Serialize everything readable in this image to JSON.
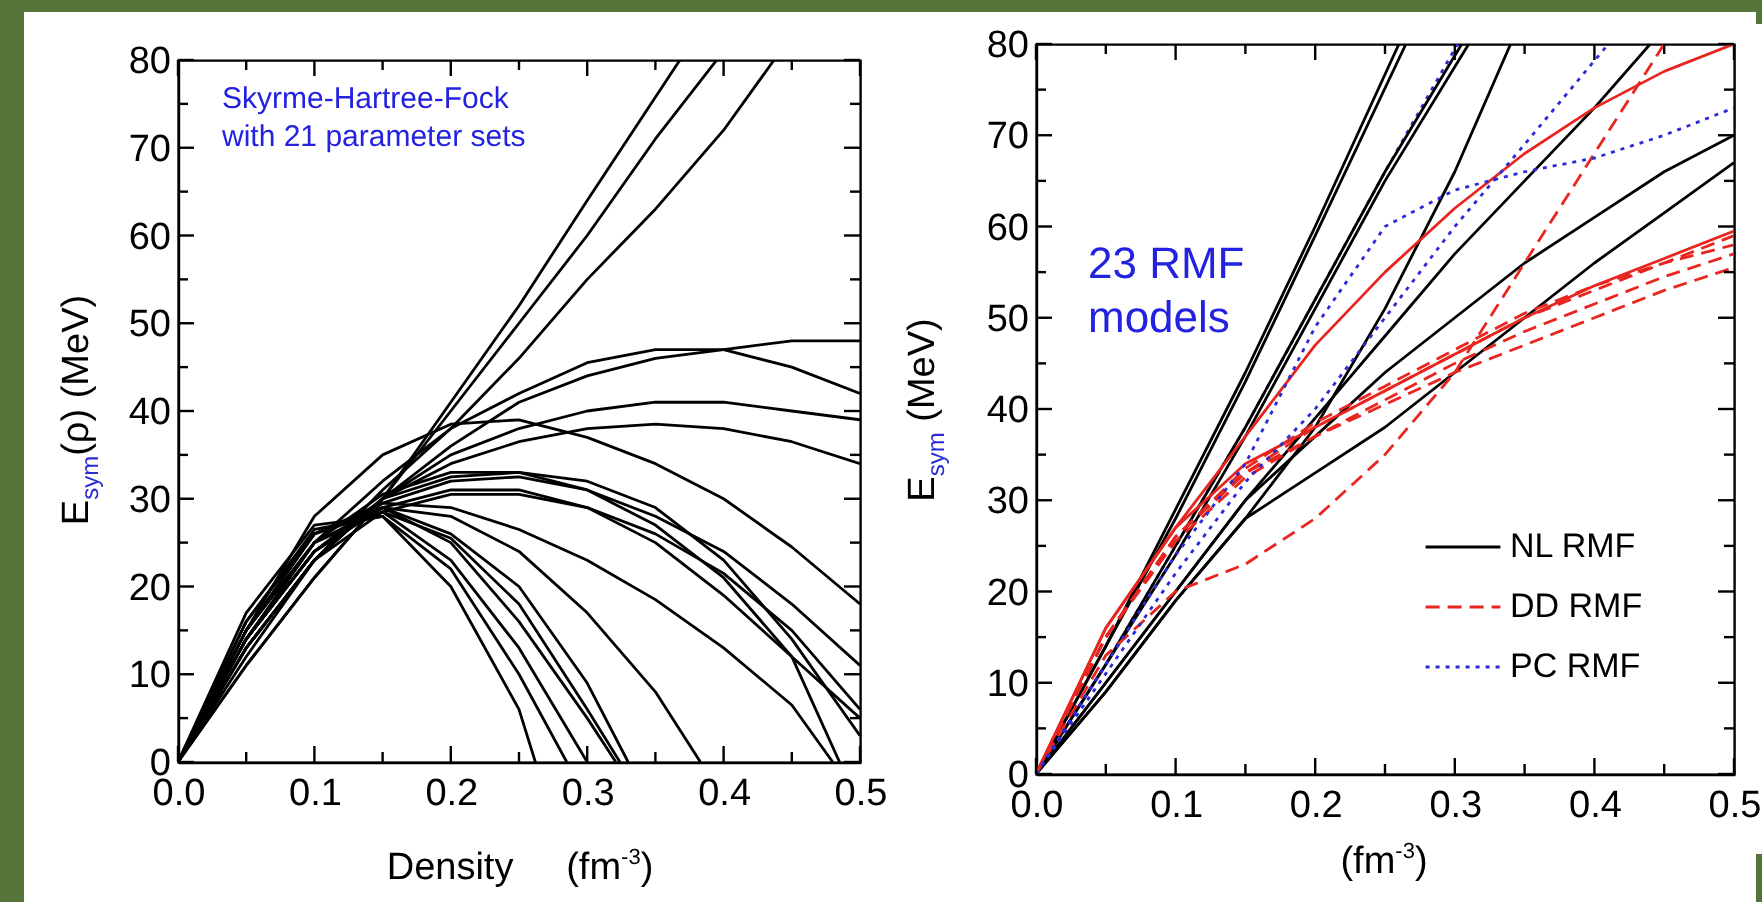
{
  "chart_data": [
    {
      "type": "line",
      "xlabel": "Density     (fm$^{-3}$)",
      "ylabel": "E$_{sym}$(ρ) (MeV)",
      "annotations": [
        "Skyrme-Hartree-Fock\nwith 21 parameter sets"
      ],
      "xlim": [
        0,
        0.5
      ],
      "ylim": [
        0,
        80
      ],
      "xticks": [
        {
          "value": 0,
          "label": "0.0"
        },
        {
          "value": 0.05,
          "label": null
        },
        {
          "value": 0.1,
          "label": "0.1"
        },
        {
          "value": 0.15,
          "label": null
        },
        {
          "value": 0.2,
          "label": "0.2"
        },
        {
          "value": 0.25,
          "label": null
        },
        {
          "value": 0.3,
          "label": "0.3"
        },
        {
          "value": 0.35,
          "label": null
        },
        {
          "value": 0.4,
          "label": "0.4"
        },
        {
          "value": 0.45,
          "label": null
        },
        {
          "value": 0.5,
          "label": "0.5"
        }
      ],
      "yticks": [
        0,
        {
          "value": 5,
          "label": null
        },
        10,
        {
          "value": 15,
          "label": null
        },
        20,
        {
          "value": 25,
          "label": null
        },
        30,
        {
          "value": 35,
          "label": null
        },
        40,
        {
          "value": 45,
          "label": null
        },
        50,
        {
          "value": 55,
          "label": null
        },
        60,
        {
          "value": 65,
          "label": null
        },
        70,
        {
          "value": 75,
          "label": null
        },
        80
      ],
      "series": [
        {
          "color": "#000000",
          "line_style": "solid",
          "x": [
            0,
            0.05,
            0.1,
            0.15,
            0.2,
            0.25,
            0.3,
            0.368
          ],
          "values": [
            0,
            11,
            21,
            30,
            41,
            52,
            64,
            80
          ]
        },
        {
          "color": "#000000",
          "line_style": "solid",
          "x": [
            0,
            0.05,
            0.1,
            0.15,
            0.2,
            0.25,
            0.3,
            0.35,
            0.395
          ],
          "values": [
            0,
            11,
            21,
            30,
            40,
            50,
            60,
            71,
            80
          ]
        },
        {
          "color": "#000000",
          "line_style": "solid",
          "x": [
            0,
            0.05,
            0.1,
            0.15,
            0.2,
            0.25,
            0.3,
            0.35,
            0.4,
            0.437
          ],
          "values": [
            0,
            12,
            23,
            31,
            38,
            46,
            55,
            63,
            72,
            80
          ]
        },
        {
          "color": "#000000",
          "line_style": "solid",
          "x": [
            0,
            0.05,
            0.1,
            0.15,
            0.2,
            0.25,
            0.3,
            0.35,
            0.4,
            0.45,
            0.5
          ],
          "values": [
            0,
            13,
            23,
            30,
            36,
            41,
            44,
            46,
            47,
            48,
            48
          ]
        },
        {
          "color": "#000000",
          "line_style": "solid",
          "x": [
            0,
            0.05,
            0.1,
            0.15,
            0.2,
            0.25,
            0.3,
            0.35,
            0.4,
            0.45,
            0.5
          ],
          "values": [
            0,
            14,
            25,
            32,
            38,
            42,
            45.5,
            47,
            47,
            45,
            42
          ]
        },
        {
          "color": "#000000",
          "line_style": "solid",
          "x": [
            0,
            0.05,
            0.1,
            0.15,
            0.2,
            0.25,
            0.3,
            0.35,
            0.4,
            0.45,
            0.5
          ],
          "values": [
            0,
            13,
            23,
            30,
            35,
            38,
            40,
            41,
            41,
            40,
            39
          ]
        },
        {
          "color": "#000000",
          "line_style": "solid",
          "x": [
            0,
            0.05,
            0.1,
            0.15,
            0.2,
            0.25,
            0.3,
            0.35,
            0.4,
            0.45,
            0.5
          ],
          "values": [
            0,
            13,
            23,
            30,
            34,
            36.5,
            38,
            38.5,
            38,
            36.5,
            34
          ]
        },
        {
          "color": "#000000",
          "line_style": "solid",
          "x": [
            0,
            0.05,
            0.1,
            0.15,
            0.2,
            0.25,
            0.3,
            0.35,
            0.4,
            0.45,
            0.5
          ],
          "values": [
            0,
            15,
            28,
            35,
            38.5,
            39,
            37,
            34,
            30,
            24.5,
            18
          ]
        },
        {
          "color": "#000000",
          "line_style": "solid",
          "x": [
            0,
            0.05,
            0.1,
            0.15,
            0.2,
            0.25,
            0.3,
            0.35,
            0.4,
            0.45,
            0.485
          ],
          "values": [
            0,
            15,
            25,
            30.5,
            33,
            33,
            31,
            27,
            21,
            12,
            0
          ]
        },
        {
          "color": "#000000",
          "line_style": "solid",
          "x": [
            0,
            0.05,
            0.1,
            0.15,
            0.2,
            0.25,
            0.3,
            0.35,
            0.4,
            0.45,
            0.5
          ],
          "values": [
            0,
            14,
            24,
            30,
            32.5,
            33,
            32,
            29,
            23,
            14,
            3
          ]
        },
        {
          "color": "#000000",
          "line_style": "solid",
          "x": [
            0,
            0.05,
            0.1,
            0.15,
            0.2,
            0.25,
            0.3,
            0.35,
            0.4,
            0.45,
            0.5
          ],
          "values": [
            0,
            14,
            24,
            29.5,
            32,
            32.5,
            31,
            28,
            24,
            18,
            11
          ]
        },
        {
          "color": "#000000",
          "line_style": "solid",
          "x": [
            0,
            0.05,
            0.1,
            0.15,
            0.2,
            0.25,
            0.3,
            0.35,
            0.4,
            0.45,
            0.5
          ],
          "values": [
            0,
            13,
            23,
            28.5,
            30.5,
            30.5,
            29,
            26,
            21.5,
            15,
            6
          ]
        },
        {
          "color": "#000000",
          "line_style": "solid",
          "x": [
            0,
            0.05,
            0.1,
            0.15,
            0.2,
            0.25,
            0.3,
            0.35,
            0.4,
            0.45,
            0.5
          ],
          "values": [
            0,
            14,
            24,
            29,
            31,
            31,
            29,
            25,
            19,
            12,
            5
          ]
        },
        {
          "color": "#000000",
          "line_style": "solid",
          "x": [
            0,
            0.05,
            0.1,
            0.15,
            0.2,
            0.25,
            0.3,
            0.35,
            0.383
          ],
          "values": [
            0,
            16,
            26,
            29,
            28,
            24,
            17,
            8,
            0
          ]
        },
        {
          "color": "#000000",
          "line_style": "solid",
          "x": [
            0,
            0.05,
            0.1,
            0.15,
            0.2,
            0.25,
            0.3,
            0.35,
            0.4,
            0.45,
            0.48
          ],
          "values": [
            0,
            15,
            26,
            29.5,
            29,
            26.5,
            23,
            18.5,
            13,
            6.5,
            0
          ]
        },
        {
          "color": "#000000",
          "line_style": "solid",
          "x": [
            0,
            0.05,
            0.1,
            0.15,
            0.2,
            0.25,
            0.262
          ],
          "values": [
            0,
            17,
            27,
            28,
            20,
            6,
            0
          ]
        },
        {
          "color": "#000000",
          "line_style": "solid",
          "x": [
            0,
            0.05,
            0.1,
            0.15,
            0.2,
            0.25,
            0.285
          ],
          "values": [
            0,
            16,
            26.5,
            28,
            22,
            10,
            0
          ]
        },
        {
          "color": "#000000",
          "line_style": "solid",
          "x": [
            0,
            0.05,
            0.1,
            0.15,
            0.2,
            0.25,
            0.3
          ],
          "values": [
            0,
            15,
            26,
            28.5,
            23,
            13,
            0
          ]
        },
        {
          "color": "#000000",
          "line_style": "solid",
          "x": [
            0,
            0.05,
            0.1,
            0.15,
            0.2,
            0.25,
            0.3,
            0.321
          ],
          "values": [
            0,
            15,
            25,
            29,
            25,
            16,
            5,
            0
          ]
        },
        {
          "color": "#000000",
          "line_style": "solid",
          "x": [
            0,
            0.05,
            0.1,
            0.15,
            0.2,
            0.25,
            0.3,
            0.324
          ],
          "values": [
            0,
            14,
            25,
            28.5,
            25.5,
            18,
            6,
            0
          ]
        },
        {
          "color": "#000000",
          "line_style": "solid",
          "x": [
            0,
            0.05,
            0.1,
            0.15,
            0.2,
            0.25,
            0.3,
            0.33
          ],
          "values": [
            0,
            14,
            24,
            29,
            26,
            20,
            9,
            0
          ]
        }
      ]
    },
    {
      "type": "line",
      "xlabel": "(fm$^{-3}$)",
      "ylabel": "E$_{sym}$ (MeV)",
      "annotations": [
        "23 RMF\nmodels"
      ],
      "legend": "bottom right",
      "xlim": [
        0,
        0.5
      ],
      "ylim": [
        0,
        80
      ],
      "xticks": [
        {
          "value": 0,
          "label": "0.0"
        },
        {
          "value": 0.05,
          "label": null
        },
        {
          "value": 0.1,
          "label": "0.1"
        },
        {
          "value": 0.15,
          "label": null
        },
        {
          "value": 0.2,
          "label": "0.2"
        },
        {
          "value": 0.25,
          "label": null
        },
        {
          "value": 0.3,
          "label": "0.3"
        },
        {
          "value": 0.35,
          "label": null
        },
        {
          "value": 0.4,
          "label": "0.4"
        },
        {
          "value": 0.45,
          "label": null
        },
        {
          "value": 0.5,
          "label": "0.5"
        }
      ],
      "yticks": [
        0,
        {
          "value": 5,
          "label": null
        },
        10,
        {
          "value": 15,
          "label": null
        },
        20,
        {
          "value": 25,
          "label": null
        },
        30,
        {
          "value": 35,
          "label": null
        },
        40,
        {
          "value": 45,
          "label": null
        },
        50,
        {
          "value": 55,
          "label": null
        },
        60,
        {
          "value": 65,
          "label": null
        },
        70,
        {
          "value": 75,
          "label": null
        },
        80
      ],
      "series": [
        {
          "name": "NL RMF",
          "color": "#000000",
          "line_style": "solid",
          "x": [
            0,
            0.05,
            0.1,
            0.15,
            0.2,
            0.26
          ],
          "values": [
            0,
            14,
            29,
            44,
            60,
            80
          ]
        },
        {
          "color": "#000000",
          "line_style": "solid",
          "x": [
            0,
            0.05,
            0.1,
            0.15,
            0.2,
            0.265
          ],
          "values": [
            0,
            14,
            28,
            43,
            59,
            80
          ]
        },
        {
          "color": "#000000",
          "line_style": "solid",
          "x": [
            0,
            0.05,
            0.1,
            0.15,
            0.2,
            0.25,
            0.305
          ],
          "values": [
            0,
            12,
            25,
            38,
            52,
            66,
            80
          ]
        },
        {
          "color": "#000000",
          "line_style": "solid",
          "x": [
            0,
            0.05,
            0.1,
            0.15,
            0.2,
            0.25,
            0.31
          ],
          "values": [
            0,
            12,
            24,
            37,
            51,
            65,
            80
          ]
        },
        {
          "color": "#000000",
          "line_style": "solid",
          "x": [
            0,
            0.05,
            0.1,
            0.15,
            0.2,
            0.25,
            0.3,
            0.34
          ],
          "values": [
            0,
            9,
            19,
            28,
            38,
            51,
            66,
            80
          ]
        },
        {
          "color": "#000000",
          "line_style": "solid",
          "x": [
            0,
            0.05,
            0.1,
            0.15,
            0.2,
            0.25,
            0.3,
            0.35,
            0.4,
            0.44
          ],
          "values": [
            0,
            10,
            20,
            30,
            39,
            48,
            57,
            65,
            73,
            80
          ]
        },
        {
          "color": "#000000",
          "line_style": "solid",
          "x": [
            0,
            0.05,
            0.1,
            0.15,
            0.2,
            0.25,
            0.3,
            0.35,
            0.4,
            0.45,
            0.5
          ],
          "values": [
            0,
            10,
            20,
            30,
            37,
            44,
            50,
            56,
            61,
            66,
            70
          ]
        },
        {
          "color": "#000000",
          "line_style": "solid",
          "x": [
            0,
            0.05,
            0.1,
            0.15,
            0.2,
            0.25,
            0.3,
            0.35,
            0.4,
            0.45,
            0.5
          ],
          "values": [
            0,
            9,
            19,
            28,
            33,
            38,
            44,
            50,
            56,
            61.5,
            67
          ]
        },
        {
          "name": "DD RMF",
          "color": "#e8251f",
          "line_style": "dashed",
          "x": [
            0,
            0.05,
            0.1,
            0.15,
            0.2,
            0.25,
            0.3,
            0.35,
            0.4,
            0.45,
            0.5
          ],
          "values": [
            0,
            15,
            26,
            33,
            38,
            42,
            46,
            50,
            53,
            56,
            59
          ]
        },
        {
          "color": "#e8251f",
          "line_style": "dashed",
          "x": [
            0,
            0.05,
            0.1,
            0.15,
            0.2,
            0.25,
            0.3,
            0.35,
            0.4,
            0.45,
            0.5
          ],
          "values": [
            0,
            15,
            26,
            33.5,
            38.5,
            42.5,
            46.5,
            50.5,
            53.5,
            56,
            58
          ]
        },
        {
          "color": "#e8251f",
          "line_style": "dashed",
          "x": [
            0,
            0.05,
            0.1,
            0.15,
            0.2,
            0.25,
            0.3,
            0.35,
            0.4,
            0.45,
            0.5
          ],
          "values": [
            0,
            15,
            26,
            33,
            37,
            41,
            45,
            48.5,
            51.5,
            54.5,
            57
          ]
        },
        {
          "color": "#e8251f",
          "line_style": "dashed",
          "x": [
            0,
            0.05,
            0.1,
            0.15,
            0.2,
            0.25,
            0.3,
            0.35,
            0.4,
            0.45,
            0.5
          ],
          "values": [
            0,
            15,
            25.5,
            32.5,
            37,
            40.5,
            44,
            47,
            50,
            53,
            55.5
          ]
        },
        {
          "color": "#e8251f",
          "line_style": "dashed",
          "x": [
            0,
            0.05,
            0.1,
            0.15,
            0.2,
            0.25,
            0.3,
            0.35,
            0.4,
            0.45
          ],
          "values": [
            0,
            13,
            20,
            23,
            28,
            35,
            44,
            56,
            68,
            80
          ]
        },
        {
          "color": "#e8251f",
          "line_style": "solid",
          "x": [
            0,
            0.05,
            0.1,
            0.15,
            0.2,
            0.25,
            0.3,
            0.35,
            0.4,
            0.45,
            0.5
          ],
          "values": [
            0,
            16,
            27,
            37,
            47,
            55,
            62,
            68,
            73,
            77,
            80
          ]
        },
        {
          "color": "#e8251f",
          "line_style": "solid",
          "x": [
            0,
            0.05,
            0.1,
            0.15,
            0.2,
            0.25,
            0.3,
            0.35,
            0.4,
            0.45,
            0.5
          ],
          "values": [
            0,
            16,
            27,
            34,
            38,
            42,
            46,
            50,
            53.5,
            56.5,
            59.5
          ]
        },
        {
          "name": "PC RMF",
          "color": "#2b2bd8",
          "line_style": "dotted",
          "x": [
            0,
            0.05,
            0.1,
            0.15,
            0.2,
            0.25,
            0.302
          ],
          "values": [
            0,
            12,
            25,
            38,
            52,
            66,
            80
          ]
        },
        {
          "color": "#2b2bd8",
          "line_style": "dotted",
          "x": [
            0,
            0.05,
            0.1,
            0.15,
            0.2,
            0.25,
            0.3,
            0.35,
            0.4,
            0.45,
            0.5
          ],
          "values": [
            0,
            12,
            24,
            34,
            49,
            60,
            64,
            66,
            67.5,
            70,
            73
          ]
        },
        {
          "color": "#2b2bd8",
          "line_style": "dotted",
          "x": [
            0,
            0.05,
            0.1,
            0.15,
            0.2,
            0.25,
            0.3,
            0.35,
            0.41
          ],
          "values": [
            0,
            11,
            22,
            32,
            40,
            50,
            60,
            69,
            80
          ]
        }
      ]
    }
  ]
}
